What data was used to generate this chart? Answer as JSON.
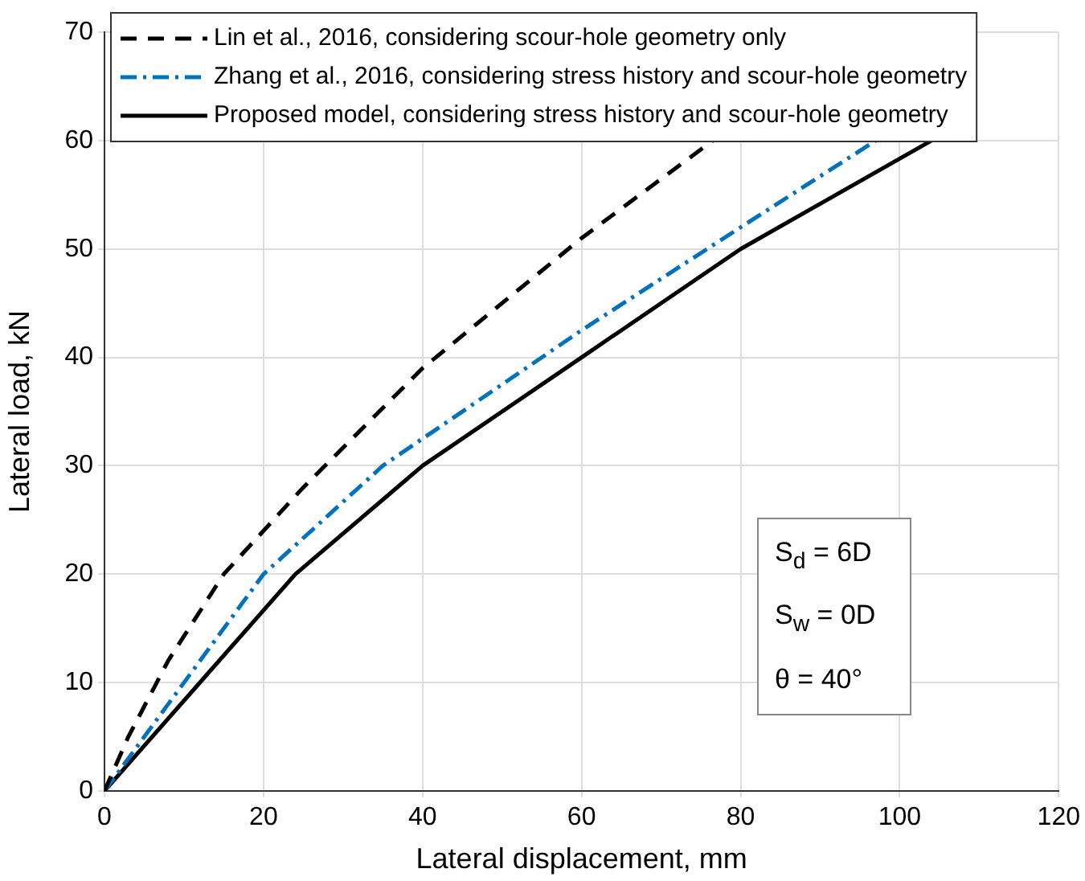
{
  "chart_data": {
    "type": "line",
    "xlabel": "Lateral displacement, mm",
    "ylabel": "Lateral load, kN",
    "xlim": [
      0,
      120
    ],
    "xticks": [
      0,
      20,
      40,
      60,
      80,
      100,
      120
    ],
    "ylim": [
      0,
      70
    ],
    "yticks": [
      0,
      10,
      20,
      30,
      40,
      50,
      60,
      70
    ],
    "grid": true,
    "legend": "top left",
    "marker": "none",
    "series": [
      {
        "name": "Lin et al., 2016, considering scour-hole geometry only",
        "color": "#000000",
        "line_style": "dashed",
        "x": [
          0,
          3,
          8,
          15,
          25,
          40,
          60,
          76.5
        ],
        "values": [
          0,
          5,
          12,
          20,
          28,
          39,
          51,
          60
        ]
      },
      {
        "name": "Zhang et al., 2016, considering stress history and scour-hole geometry",
        "color": "#0072bd",
        "line_style": "dashdot",
        "x": [
          0,
          10,
          20,
          35,
          60,
          80,
          97
        ],
        "values": [
          0,
          10,
          20,
          30,
          42.5,
          52,
          60
        ]
      },
      {
        "name": "Proposed model, considering stress history and scour-hole geometry",
        "color": "#000000",
        "line_style": "solid",
        "x": [
          0,
          24,
          40,
          60,
          80,
          104
        ],
        "values": [
          0,
          20,
          30,
          40,
          50,
          60
        ]
      }
    ],
    "annotations": [
      "S$_{d}$ = 6D",
      "S$_{w}$ = 0D",
      "θ = 40°"
    ]
  }
}
